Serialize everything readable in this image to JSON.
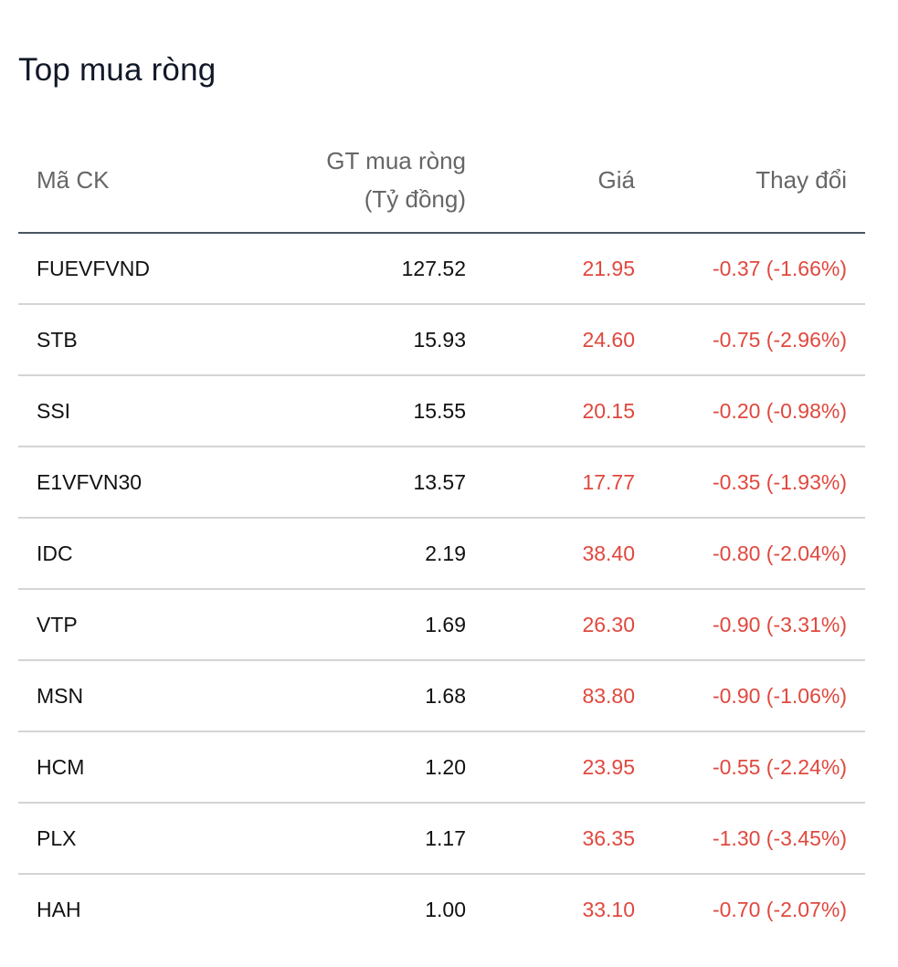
{
  "title": "Top mua ròng",
  "table": {
    "headers": {
      "code": "Mã CK",
      "value_line1": "GT mua ròng",
      "value_line2": "(Tỷ đồng)",
      "price": "Giá",
      "change": "Thay đổi"
    },
    "rows": [
      {
        "code": "FUEVFVND",
        "value": "127.52",
        "price": "21.95",
        "change": "-0.37 (-1.66%)"
      },
      {
        "code": "STB",
        "value": "15.93",
        "price": "24.60",
        "change": "-0.75 (-2.96%)"
      },
      {
        "code": "SSI",
        "value": "15.55",
        "price": "20.15",
        "change": "-0.20 (-0.98%)"
      },
      {
        "code": "E1VFVN30",
        "value": "13.57",
        "price": "17.77",
        "change": "-0.35 (-1.93%)"
      },
      {
        "code": "IDC",
        "value": "2.19",
        "price": "38.40",
        "change": "-0.80 (-2.04%)"
      },
      {
        "code": "VTP",
        "value": "1.69",
        "price": "26.30",
        "change": "-0.90 (-3.31%)"
      },
      {
        "code": "MSN",
        "value": "1.68",
        "price": "83.80",
        "change": "-0.90 (-1.06%)"
      },
      {
        "code": "HCM",
        "value": "1.20",
        "price": "23.95",
        "change": "-0.55 (-2.24%)"
      },
      {
        "code": "PLX",
        "value": "1.17",
        "price": "36.35",
        "change": "-1.30 (-3.45%)"
      },
      {
        "code": "HAH",
        "value": "1.00",
        "price": "33.10",
        "change": "-0.70 (-2.07%)"
      }
    ]
  },
  "colors": {
    "decrease": "#e0483e",
    "header_text": "#666666",
    "header_rule": "#4b5563",
    "row_rule": "#d4d4d4"
  }
}
